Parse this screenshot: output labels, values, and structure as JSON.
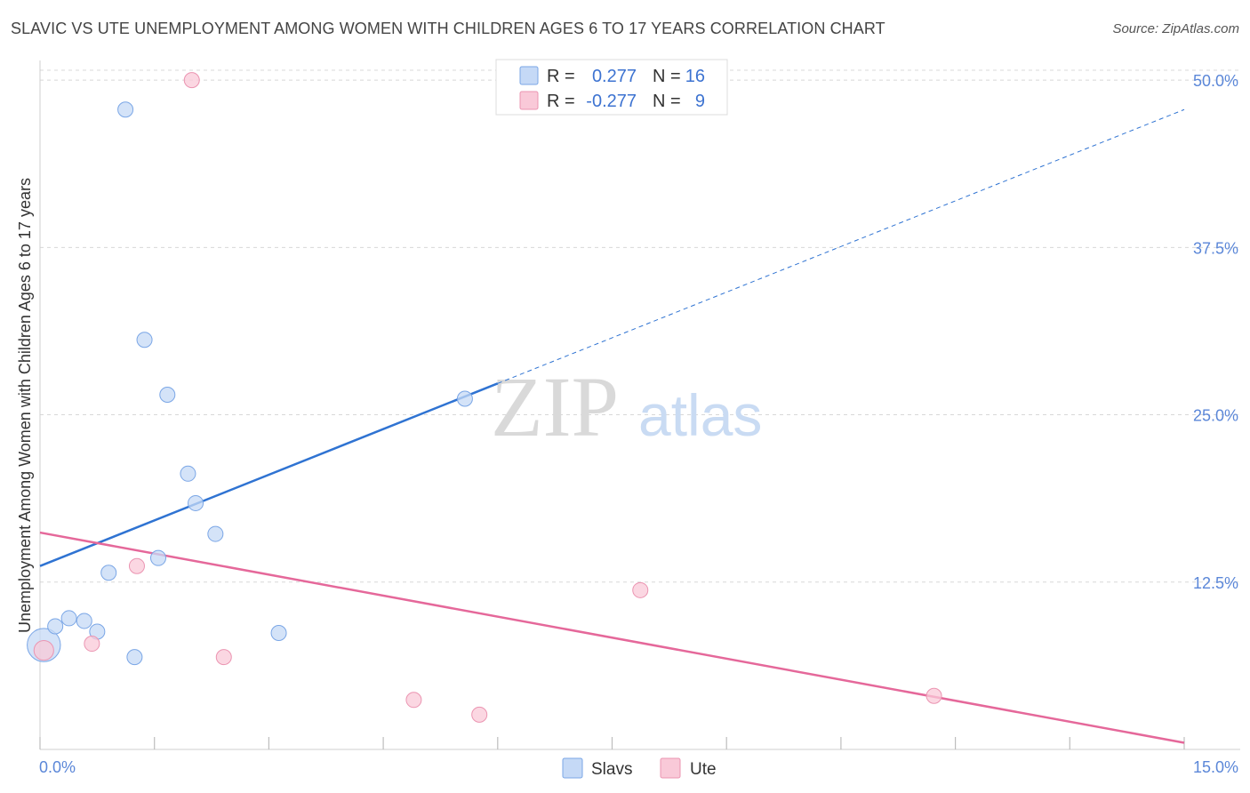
{
  "header": {
    "title": "SLAVIC VS UTE UNEMPLOYMENT AMONG WOMEN WITH CHILDREN AGES 6 TO 17 YEARS CORRELATION CHART",
    "source": "Source: ZipAtlas.com"
  },
  "watermark": {
    "zip": "ZIP",
    "atlas": "atlas"
  },
  "legend": {
    "slavs": {
      "r_label": "R =",
      "r_value": "0.277",
      "n_label": "N =",
      "n_value": "16"
    },
    "ute": {
      "r_label": "R =",
      "r_value": "-0.277",
      "n_label": "N =",
      "n_value": "9"
    }
  },
  "bottom_legend": {
    "slavs": "Slavs",
    "ute": "Ute"
  },
  "colors": {
    "slavs_fill": "#c5d9f6",
    "slavs_stroke": "#7aa6e6",
    "slavs_line": "#2f73d2",
    "ute_fill": "#f9c9d8",
    "ute_stroke": "#eb94b1",
    "ute_line": "#e5689a",
    "grid": "#d8d8d8",
    "axis_text": "#5b87d8"
  },
  "chart_data": {
    "type": "scatter",
    "title": "SLAVIC VS UTE UNEMPLOYMENT AMONG WOMEN WITH CHILDREN AGES 6 TO 17 YEARS CORRELATION CHART",
    "xlabel": "",
    "ylabel": "Unemployment Among Women with Children Ages 6 to 17 years",
    "xlim": [
      0,
      15
    ],
    "ylim": [
      0,
      52
    ],
    "x_tick_labels": [
      "0.0%",
      "15.0%"
    ],
    "y_ticks": [
      12.5,
      25.0,
      37.5,
      50.0
    ],
    "y_tick_labels": [
      "12.5%",
      "25.0%",
      "37.5%",
      "50.0%"
    ],
    "grid": true,
    "series": [
      {
        "name": "Slavs",
        "points": [
          {
            "x": 0.05,
            "y": 7.8,
            "size": 2.2
          },
          {
            "x": 0.2,
            "y": 9.2,
            "size": 1
          },
          {
            "x": 0.38,
            "y": 9.8,
            "size": 1
          },
          {
            "x": 0.58,
            "y": 9.6,
            "size": 1
          },
          {
            "x": 0.75,
            "y": 8.8,
            "size": 1
          },
          {
            "x": 0.9,
            "y": 13.2,
            "size": 1
          },
          {
            "x": 1.12,
            "y": 47.8,
            "size": 1
          },
          {
            "x": 1.24,
            "y": 6.9,
            "size": 1
          },
          {
            "x": 1.37,
            "y": 30.6,
            "size": 1
          },
          {
            "x": 1.55,
            "y": 14.3,
            "size": 1
          },
          {
            "x": 1.67,
            "y": 26.5,
            "size": 1
          },
          {
            "x": 1.94,
            "y": 20.6,
            "size": 1
          },
          {
            "x": 2.04,
            "y": 18.4,
            "size": 1
          },
          {
            "x": 2.3,
            "y": 16.1,
            "size": 1
          },
          {
            "x": 3.13,
            "y": 8.7,
            "size": 1
          },
          {
            "x": 5.57,
            "y": 26.2,
            "size": 1
          }
        ],
        "trend": {
          "x0": 0,
          "y0": 13.7,
          "x_solid_end": 6.0,
          "x1": 15,
          "y1": 47.8
        }
      },
      {
        "name": "Ute",
        "points": [
          {
            "x": 0.05,
            "y": 7.4,
            "size": 1.3
          },
          {
            "x": 0.68,
            "y": 7.9,
            "size": 1
          },
          {
            "x": 1.27,
            "y": 13.7,
            "size": 1
          },
          {
            "x": 1.99,
            "y": 50.0,
            "size": 1
          },
          {
            "x": 2.41,
            "y": 6.9,
            "size": 1
          },
          {
            "x": 4.9,
            "y": 3.7,
            "size": 1
          },
          {
            "x": 5.76,
            "y": 2.6,
            "size": 1
          },
          {
            "x": 7.87,
            "y": 11.9,
            "size": 1
          },
          {
            "x": 11.72,
            "y": 4.0,
            "size": 1
          }
        ],
        "trend": {
          "x0": 0,
          "y0": 16.2,
          "x1": 15,
          "y1": 0.5
        }
      }
    ]
  }
}
